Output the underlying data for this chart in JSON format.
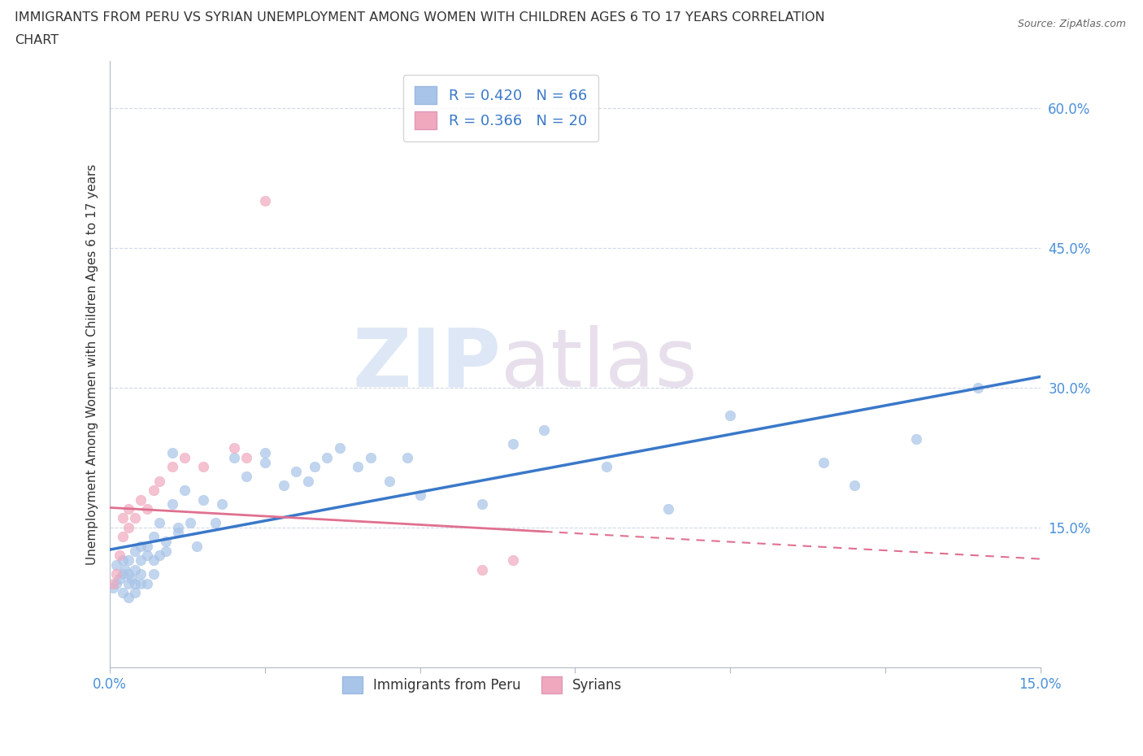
{
  "title_line1": "IMMIGRANTS FROM PERU VS SYRIAN UNEMPLOYMENT AMONG WOMEN WITH CHILDREN AGES 6 TO 17 YEARS CORRELATION",
  "title_line2": "CHART",
  "source": "Source: ZipAtlas.com",
  "ylabel": "Unemployment Among Women with Children Ages 6 to 17 years",
  "xlim": [
    0.0,
    0.15
  ],
  "ylim": [
    0.0,
    0.65
  ],
  "xtick_positions": [
    0.0,
    0.025,
    0.05,
    0.075,
    0.1,
    0.125,
    0.15
  ],
  "xticklabels": [
    "0.0%",
    "",
    "",
    "",
    "",
    "",
    "15.0%"
  ],
  "ytick_positions": [
    0.0,
    0.15,
    0.3,
    0.45,
    0.6
  ],
  "yticklabels": [
    "",
    "15.0%",
    "30.0%",
    "45.0%",
    "60.0%"
  ],
  "r_peru": 0.42,
  "n_peru": 66,
  "r_syria": 0.366,
  "n_syria": 20,
  "peru_color": "#a8c4e8",
  "syria_color": "#f0a8be",
  "trendline_peru_color": "#3a78c9",
  "trendline_syria_color": "#e07090",
  "peru_x": [
    0.0005,
    0.001,
    0.001,
    0.0015,
    0.002,
    0.002,
    0.002,
    0.0025,
    0.003,
    0.003,
    0.003,
    0.003,
    0.0035,
    0.004,
    0.004,
    0.004,
    0.004,
    0.005,
    0.005,
    0.005,
    0.005,
    0.006,
    0.006,
    0.006,
    0.007,
    0.007,
    0.007,
    0.008,
    0.008,
    0.009,
    0.009,
    0.01,
    0.01,
    0.011,
    0.011,
    0.012,
    0.013,
    0.014,
    0.015,
    0.017,
    0.018,
    0.02,
    0.022,
    0.025,
    0.025,
    0.028,
    0.03,
    0.032,
    0.033,
    0.035,
    0.037,
    0.04,
    0.042,
    0.045,
    0.048,
    0.05,
    0.06,
    0.065,
    0.07,
    0.08,
    0.09,
    0.1,
    0.115,
    0.12,
    0.13,
    0.14
  ],
  "peru_y": [
    0.085,
    0.09,
    0.11,
    0.095,
    0.1,
    0.08,
    0.115,
    0.105,
    0.09,
    0.075,
    0.115,
    0.1,
    0.095,
    0.125,
    0.105,
    0.09,
    0.08,
    0.13,
    0.115,
    0.1,
    0.09,
    0.12,
    0.09,
    0.13,
    0.14,
    0.115,
    0.1,
    0.155,
    0.12,
    0.125,
    0.135,
    0.23,
    0.175,
    0.15,
    0.145,
    0.19,
    0.155,
    0.13,
    0.18,
    0.155,
    0.175,
    0.225,
    0.205,
    0.23,
    0.22,
    0.195,
    0.21,
    0.2,
    0.215,
    0.225,
    0.235,
    0.215,
    0.225,
    0.2,
    0.225,
    0.185,
    0.175,
    0.24,
    0.255,
    0.215,
    0.17,
    0.27,
    0.22,
    0.195,
    0.245,
    0.3
  ],
  "syria_x": [
    0.0005,
    0.001,
    0.0015,
    0.002,
    0.002,
    0.003,
    0.003,
    0.004,
    0.005,
    0.006,
    0.007,
    0.008,
    0.01,
    0.012,
    0.015,
    0.02,
    0.022,
    0.025,
    0.06,
    0.065
  ],
  "syria_y": [
    0.09,
    0.1,
    0.12,
    0.14,
    0.16,
    0.15,
    0.17,
    0.16,
    0.18,
    0.17,
    0.19,
    0.2,
    0.215,
    0.225,
    0.215,
    0.235,
    0.225,
    0.5,
    0.105,
    0.115
  ],
  "watermark_zip": "ZIP",
  "watermark_atlas": "atlas",
  "background_color": "#ffffff",
  "grid_color": "#d0d8e8",
  "tick_color": "#4a90d9",
  "title_color": "#333333",
  "label_color": "#333333"
}
